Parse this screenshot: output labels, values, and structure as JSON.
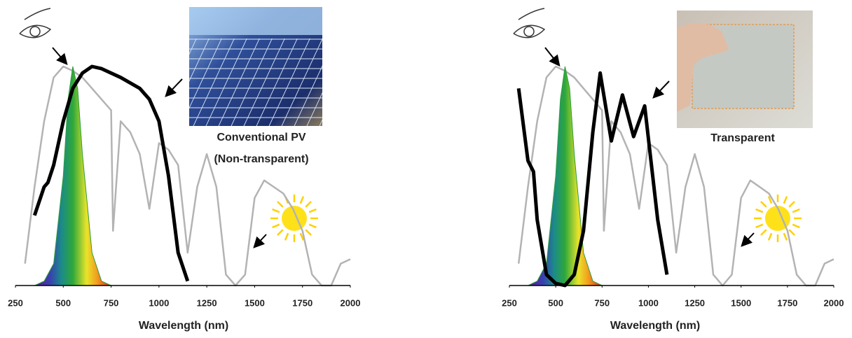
{
  "chart_data": [
    {
      "type": "line",
      "caption": [
        "Conventional PV",
        "(Non-transparent)"
      ],
      "x_label": "Wavelength (nm)",
      "xlim": [
        250,
        2000
      ],
      "xticks": [
        250,
        500,
        750,
        1000,
        1250,
        1500,
        1750,
        2000
      ],
      "ylim": [
        0,
        1
      ],
      "series": [
        {
          "color": "#b3b3b3",
          "x": [
            300,
            350,
            400,
            450,
            500,
            550,
            600,
            650,
            700,
            750,
            760,
            800,
            850,
            900,
            950,
            1000,
            1050,
            1100,
            1150,
            1200,
            1250,
            1300,
            1350,
            1400,
            1450,
            1500,
            1550,
            1600,
            1650,
            1700,
            1750,
            1800,
            1850,
            1900,
            1950,
            2000
          ],
          "values": [
            0.1,
            0.45,
            0.75,
            0.95,
            1.0,
            0.98,
            0.95,
            0.9,
            0.85,
            0.8,
            0.25,
            0.75,
            0.7,
            0.6,
            0.35,
            0.65,
            0.62,
            0.55,
            0.15,
            0.45,
            0.6,
            0.45,
            0.05,
            0.0,
            0.05,
            0.4,
            0.48,
            0.45,
            0.42,
            0.35,
            0.25,
            0.05,
            0,
            0,
            0.1,
            0.12
          ]
        },
        {
          "color": "#2e9e3a",
          "area": true,
          "x": [
            350,
            400,
            450,
            500,
            525,
            550,
            575,
            600,
            650,
            700,
            750
          ],
          "values": [
            0,
            0.02,
            0.1,
            0.5,
            0.85,
            1.0,
            0.9,
            0.6,
            0.15,
            0.02,
            0
          ]
        },
        {
          "color": "#000000",
          "x": [
            350,
            400,
            420,
            450,
            500,
            550,
            600,
            650,
            700,
            800,
            900,
            950,
            1000,
            1050,
            1100,
            1150
          ],
          "values": [
            0.32,
            0.45,
            0.47,
            0.55,
            0.75,
            0.9,
            0.97,
            1.0,
            0.99,
            0.95,
            0.9,
            0.85,
            0.75,
            0.5,
            0.15,
            0.02
          ]
        }
      ]
    },
    {
      "type": "line",
      "caption": [
        "Transparent"
      ],
      "x_label": "Wavelength (nm)",
      "xlim": [
        250,
        2000
      ],
      "xticks": [
        250,
        500,
        750,
        1000,
        1250,
        1500,
        1750,
        2000
      ],
      "ylim": [
        0,
        1
      ],
      "series": [
        {
          "color": "#b3b3b3",
          "x": [
            300,
            350,
            400,
            450,
            500,
            550,
            600,
            650,
            700,
            750,
            760,
            800,
            850,
            900,
            950,
            1000,
            1050,
            1100,
            1150,
            1200,
            1250,
            1300,
            1350,
            1400,
            1450,
            1500,
            1550,
            1600,
            1650,
            1700,
            1750,
            1800,
            1850,
            1900,
            1950,
            2000
          ],
          "values": [
            0.1,
            0.45,
            0.75,
            0.95,
            1.0,
            0.98,
            0.95,
            0.9,
            0.85,
            0.8,
            0.25,
            0.75,
            0.7,
            0.6,
            0.35,
            0.65,
            0.62,
            0.55,
            0.15,
            0.45,
            0.6,
            0.45,
            0.05,
            0.0,
            0.05,
            0.4,
            0.48,
            0.45,
            0.42,
            0.35,
            0.25,
            0.05,
            0,
            0,
            0.1,
            0.12
          ]
        },
        {
          "color": "#2e9e3a",
          "area": true,
          "x": [
            350,
            400,
            450,
            500,
            525,
            550,
            575,
            600,
            650,
            700,
            750
          ],
          "values": [
            0,
            0.02,
            0.1,
            0.5,
            0.85,
            1.0,
            0.9,
            0.6,
            0.15,
            0.02,
            0
          ]
        },
        {
          "color": "#000000",
          "x": [
            300,
            350,
            380,
            400,
            450,
            500,
            550,
            600,
            650,
            700,
            740,
            800,
            860,
            920,
            980,
            1050,
            1100
          ],
          "values": [
            0.9,
            0.57,
            0.52,
            0.3,
            0.05,
            0.01,
            0.0,
            0.05,
            0.25,
            0.7,
            0.97,
            0.66,
            0.87,
            0.68,
            0.82,
            0.3,
            0.05
          ]
        }
      ]
    }
  ]
}
